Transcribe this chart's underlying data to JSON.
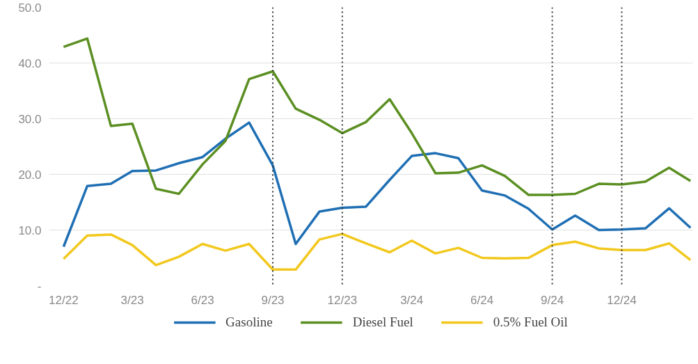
{
  "chart_data": {
    "type": "line",
    "x": [
      "2022-12",
      "2023-01",
      "2023-02",
      "2023-03",
      "2023-04",
      "2023-05",
      "2023-06",
      "2023-07",
      "2023-08",
      "2023-09",
      "2023-10",
      "2023-11",
      "2023-12",
      "2024-01",
      "2024-02",
      "2024-03",
      "2024-04",
      "2024-05",
      "2024-06",
      "2024-07",
      "2024-08",
      "2024-09",
      "2024-10",
      "2024-11",
      "2024-12",
      "2025-01",
      "2025-02",
      "2025-03"
    ],
    "series": [
      {
        "name": "Gasoline",
        "color": "#1f6fb4",
        "values": [
          7.0,
          17.9,
          18.3,
          20.6,
          20.7,
          22.0,
          23.1,
          26.4,
          29.3,
          21.6,
          7.5,
          13.3,
          14.0,
          14.2,
          19.0,
          23.3,
          23.8,
          22.9,
          17.1,
          16.2,
          13.8,
          10.1,
          12.6,
          10.0,
          10.1,
          10.3,
          13.9,
          10.4
        ]
      },
      {
        "name": "Diesel Fuel",
        "color": "#5b8f22",
        "values": [
          42.9,
          44.4,
          28.7,
          29.1,
          17.4,
          16.5,
          21.8,
          26.0,
          37.1,
          38.5,
          31.8,
          29.8,
          27.4,
          29.4,
          33.5,
          27.4,
          20.2,
          20.3,
          21.6,
          19.7,
          16.3,
          16.3,
          16.5,
          18.3,
          18.2,
          18.7,
          21.2,
          18.8
        ]
      },
      {
        "name": "0.5% Fuel Oil",
        "color": "#f2c81e",
        "values": [
          4.8,
          9.0,
          9.2,
          7.3,
          3.7,
          5.2,
          7.5,
          6.3,
          7.5,
          2.9,
          2.9,
          8.3,
          9.3,
          7.6,
          6.0,
          8.1,
          5.8,
          6.8,
          5.0,
          4.9,
          5.0,
          7.3,
          7.9,
          6.7,
          6.4,
          6.4,
          7.6,
          4.6
        ]
      }
    ],
    "xlim": [
      "2022-11-12",
      "2025-03-04"
    ],
    "xticks": [
      {
        "value": "2022-12",
        "label": "12/22"
      },
      {
        "value": "2023-03",
        "label": "3/23"
      },
      {
        "value": "2023-06",
        "label": "6/23"
      },
      {
        "value": "2023-09",
        "label": "9/23"
      },
      {
        "value": "2023-12",
        "label": "12/23"
      },
      {
        "value": "2024-03",
        "label": "3/24"
      },
      {
        "value": "2024-06",
        "label": "6/24"
      },
      {
        "value": "2024-09",
        "label": "9/24"
      },
      {
        "value": "2024-12",
        "label": "12/24"
      }
    ],
    "ylim": [
      0,
      50
    ],
    "yticks": [
      {
        "value": 0,
        "label": "-"
      },
      {
        "value": 10,
        "label": "10.0"
      },
      {
        "value": 20,
        "label": "20.0"
      },
      {
        "value": 30,
        "label": "30.0"
      },
      {
        "value": 40,
        "label": "40.0"
      },
      {
        "value": 50,
        "label": "50.0"
      }
    ],
    "ref_lines": [
      {
        "axis": "x",
        "value": "2023-09",
        "color": "#333333",
        "line_style": "dotted"
      },
      {
        "axis": "x",
        "value": "2023-12",
        "color": "#333333",
        "line_style": "dotted"
      },
      {
        "axis": "x",
        "value": "2024-09",
        "color": "#333333",
        "line_style": "dotted"
      },
      {
        "axis": "x",
        "value": "2024-12",
        "color": "#333333",
        "line_style": "dotted"
      }
    ],
    "grid": "y",
    "legend": "bottom",
    "line_style": "solid",
    "marker": "none"
  }
}
